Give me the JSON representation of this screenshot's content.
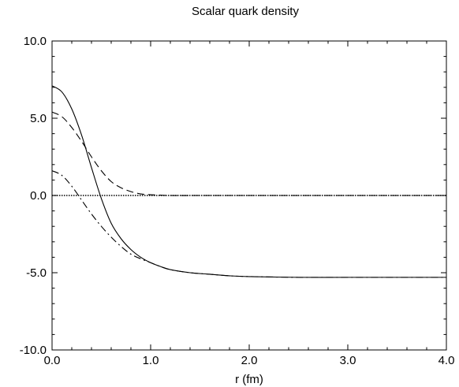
{
  "chart_data": {
    "type": "line",
    "title": "Scalar quark density",
    "xlabel": "r (fm)",
    "ylabel": "",
    "xlim": [
      0.0,
      4.0
    ],
    "ylim": [
      -10.0,
      10.0
    ],
    "xticks": [
      "0.0",
      "1.0",
      "2.0",
      "3.0",
      "4.0"
    ],
    "yticks": [
      "10.0",
      "5.0",
      "0.0",
      "-5.0",
      "-10.0"
    ],
    "grid": false,
    "legend": "none",
    "series": [
      {
        "style": "solid",
        "x": [
          0.0,
          0.1,
          0.2,
          0.3,
          0.4,
          0.5,
          0.6,
          0.7,
          0.8,
          0.9,
          1.0,
          1.1,
          1.2,
          1.4,
          1.6,
          1.8,
          2.0,
          2.5,
          3.0,
          3.5,
          4.0
        ],
        "y": [
          7.1,
          6.7,
          5.6,
          3.9,
          1.8,
          -0.2,
          -1.8,
          -2.8,
          -3.5,
          -4.0,
          -4.35,
          -4.6,
          -4.8,
          -5.0,
          -5.1,
          -5.2,
          -5.25,
          -5.3,
          -5.3,
          -5.3,
          -5.3
        ]
      },
      {
        "style": "dashed",
        "x": [
          0.0,
          0.1,
          0.2,
          0.3,
          0.4,
          0.5,
          0.6,
          0.7,
          0.8,
          0.9,
          1.0,
          1.1,
          1.2,
          1.5,
          2.0,
          3.0,
          4.0
        ],
        "y": [
          5.4,
          5.1,
          4.4,
          3.5,
          2.5,
          1.6,
          0.9,
          0.5,
          0.25,
          0.1,
          0.05,
          0.02,
          0.0,
          0.0,
          0.0,
          0.0,
          0.0
        ]
      },
      {
        "style": "dashdot",
        "x": [
          0.0,
          0.1,
          0.2,
          0.3,
          0.4,
          0.5,
          0.6,
          0.7,
          0.8,
          0.9,
          1.0,
          1.1,
          1.2,
          1.4,
          1.6,
          1.8,
          2.0,
          2.5,
          3.0,
          3.5,
          4.0
        ],
        "y": [
          1.6,
          1.3,
          0.6,
          -0.3,
          -1.2,
          -2.0,
          -2.7,
          -3.3,
          -3.8,
          -4.1,
          -4.35,
          -4.6,
          -4.8,
          -5.0,
          -5.1,
          -5.2,
          -5.25,
          -5.3,
          -5.3,
          -5.3,
          -5.3
        ]
      },
      {
        "style": "dotted",
        "x": [
          0.0,
          4.0
        ],
        "y": [
          0.0,
          0.0
        ]
      }
    ]
  }
}
